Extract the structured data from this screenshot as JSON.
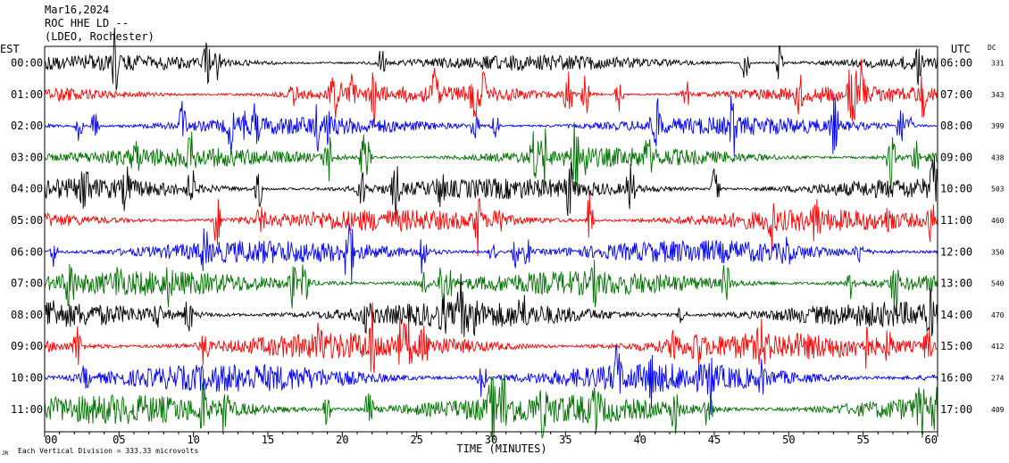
{
  "header": {
    "line1": "Mar16,2024",
    "line2": "ROC HHE LD --",
    "line3": "(LDEO, Rochester)"
  },
  "left_axis_label": "EST",
  "right_axis_label": "UTC",
  "dc_label": "DC",
  "footer_note": "Each Vertical Division =  333.33 microvolts",
  "footer_mark": "JR",
  "chart_data": {
    "type": "line",
    "xlabel": "TIME (MINUTES)",
    "xlim": [
      0,
      60
    ],
    "x_ticks": [
      "00",
      "05",
      "10",
      "15",
      "20",
      "25",
      "30",
      "35",
      "40",
      "45",
      "50",
      "55",
      "60"
    ],
    "trace_colors": [
      "#000000",
      "#ff0000",
      "#0000ff",
      "#007000"
    ],
    "rows": [
      {
        "est": "00:00",
        "utc": "06:00",
        "dc": "331"
      },
      {
        "est": "01:00",
        "utc": "07:00",
        "dc": "343"
      },
      {
        "est": "02:00",
        "utc": "08:00",
        "dc": "399"
      },
      {
        "est": "03:00",
        "utc": "09:00",
        "dc": "438"
      },
      {
        "est": "04:00",
        "utc": "10:00",
        "dc": "503"
      },
      {
        "est": "05:00",
        "utc": "11:00",
        "dc": "460"
      },
      {
        "est": "06:00",
        "utc": "12:00",
        "dc": "350"
      },
      {
        "est": "07:00",
        "utc": "13:00",
        "dc": "540"
      },
      {
        "est": "08:00",
        "utc": "14:00",
        "dc": "470"
      },
      {
        "est": "09:00",
        "utc": "15:00",
        "dc": "412"
      },
      {
        "est": "10:00",
        "utc": "16:00",
        "dc": "274"
      },
      {
        "est": "11:00",
        "utc": "17:00",
        "dc": "409"
      }
    ]
  }
}
